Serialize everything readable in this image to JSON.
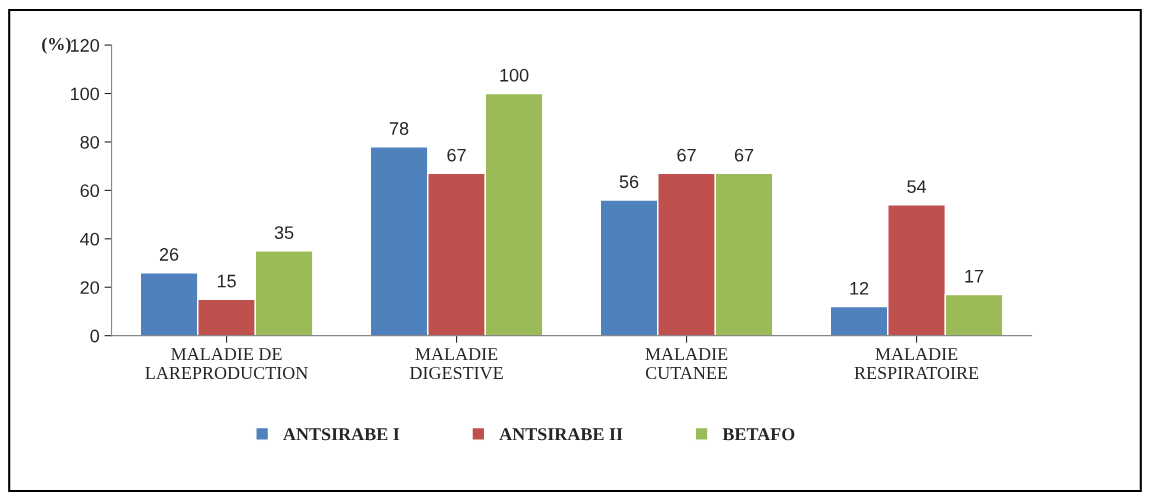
{
  "chart_data": {
    "type": "bar",
    "ylabel": "(%)",
    "categories": [
      "MALADIE DE\nLAREPRODUCTION",
      "MALADIE\nDIGESTIVE",
      "MALADIE\nCUTANEE",
      "MALADIE\nRESPIRATOIRE"
    ],
    "series": [
      {
        "name": "ANTSIRABE I",
        "color": "#4f81bd",
        "values": [
          26,
          78,
          56,
          12
        ]
      },
      {
        "name": "ANTSIRABE II",
        "color": "#c0504d",
        "values": [
          15,
          67,
          67,
          54
        ]
      },
      {
        "name": "BETAFO",
        "color": "#9bbb59",
        "values": [
          35,
          100,
          67,
          17
        ]
      }
    ],
    "ylim": [
      0,
      120
    ],
    "yticks": [
      0,
      20,
      40,
      60,
      80,
      100,
      120
    ],
    "grid": false,
    "legend": "bottom",
    "data_labels": true
  }
}
